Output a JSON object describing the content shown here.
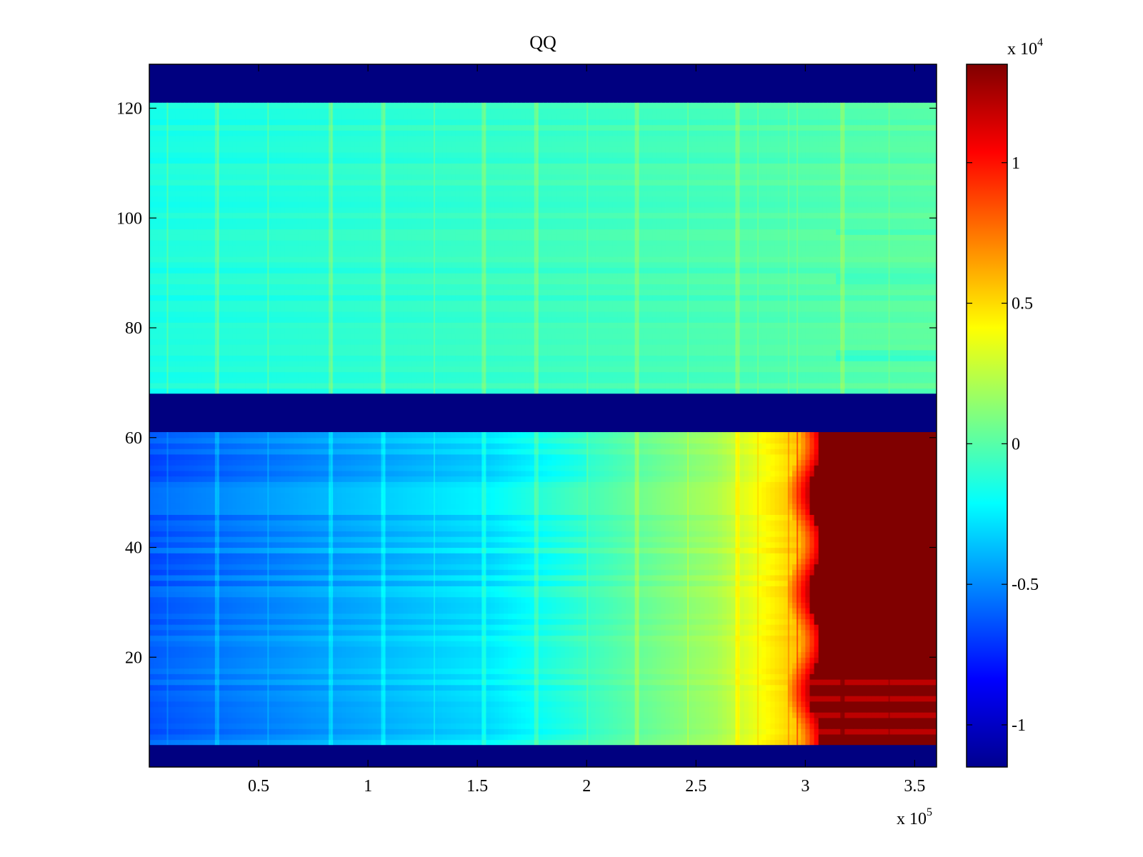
{
  "chart_data": {
    "type": "heatmap",
    "title": "QQ",
    "xlabel": "",
    "ylabel": "",
    "x_multiplier": "x 10",
    "x_multiplier_exp": "5",
    "x_ticks": [
      0.5,
      1,
      1.5,
      2,
      2.5,
      3,
      3.5
    ],
    "x_tick_labels": [
      "0.5",
      "1",
      "1.5",
      "2",
      "2.5",
      "3",
      "3.5"
    ],
    "xlim": [
      0,
      3.6
    ],
    "y_ticks": [
      20,
      40,
      60,
      80,
      100,
      120
    ],
    "y_tick_labels": [
      "20",
      "40",
      "60",
      "80",
      "100",
      "120"
    ],
    "ylim": [
      0,
      128
    ],
    "grid": false,
    "colormap": "jet",
    "colorbar": {
      "multiplier": "x 10",
      "multiplier_exp": "4",
      "clim": [
        -1.15,
        1.35
      ],
      "ticks": [
        -1,
        -0.5,
        0,
        0.5,
        1
      ],
      "tick_labels": [
        "-1",
        "-0.5",
        "0",
        "0.5",
        "1"
      ]
    },
    "regions": [
      {
        "rows": [
          121,
          128
        ],
        "x": [
          0,
          3.6
        ],
        "value": -1.15,
        "description": "min band"
      },
      {
        "rows": [
          68,
          121
        ],
        "x": [
          0,
          3.6
        ],
        "value_range": [
          -0.2,
          0.1
        ]
      },
      {
        "rows": [
          61,
          68
        ],
        "x": [
          0,
          3.6
        ],
        "value": -1.15,
        "description": "min band"
      },
      {
        "rows": [
          4,
          61
        ],
        "x": [
          0,
          3.6
        ],
        "value_range": [
          -0.75,
          1.35
        ],
        "gradient": "increasing with x, saturates near x=3.1"
      },
      {
        "rows": [
          0,
          4
        ],
        "x": [
          0,
          3.6
        ],
        "value": -1.15,
        "description": "min band"
      }
    ]
  }
}
